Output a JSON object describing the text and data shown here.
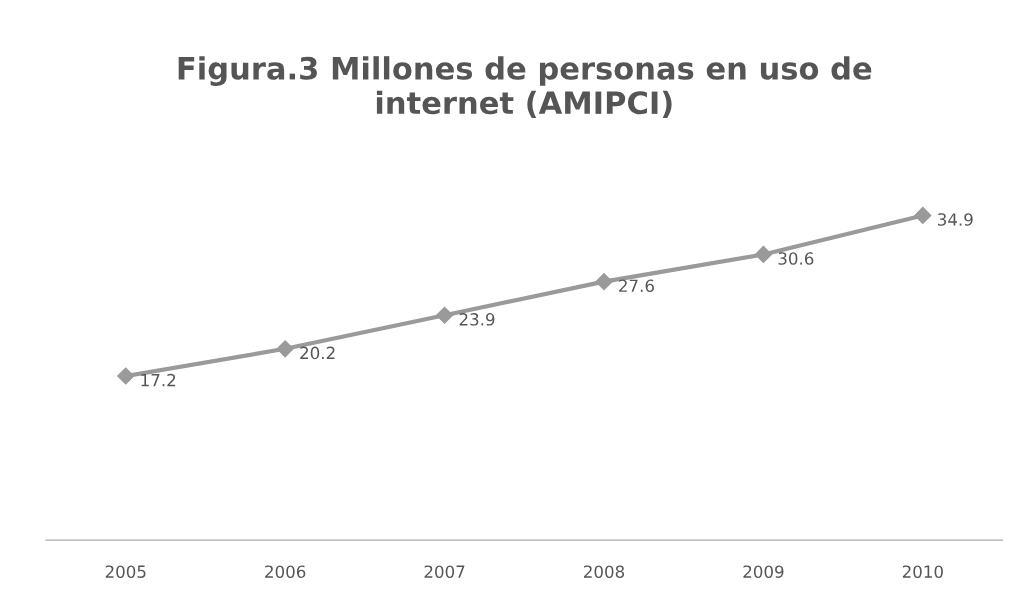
{
  "chart_data": {
    "type": "line",
    "title": "Figura.3 Millones de personas en uso de\ninternet (AMIPCI)",
    "categories": [
      "2005",
      "2006",
      "2007",
      "2008",
      "2009",
      "2010"
    ],
    "series": [
      {
        "color": "#9a9a9a",
        "values": [
          17.2,
          20.2,
          23.9,
          27.6,
          30.6,
          34.9
        ]
      }
    ],
    "tick_labels": "x",
    "data_labels": true,
    "marker": "diamond",
    "line_style": "solid"
  }
}
